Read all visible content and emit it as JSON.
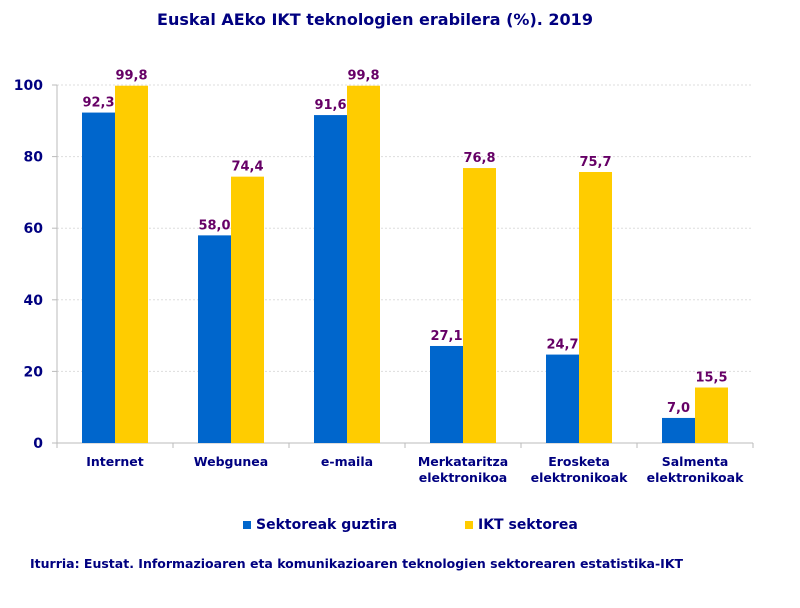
{
  "chart_data": {
    "type": "bar",
    "title": "Euskal AEko IKT teknologien erabilera (%). 2019",
    "categories": [
      [
        "Internet"
      ],
      [
        "Webgunea"
      ],
      [
        "e-maila"
      ],
      [
        "Merkataritza",
        "elektronikoa"
      ],
      [
        "Erosketa",
        "elektronikoak"
      ],
      [
        "Salmenta",
        "elektronikoak"
      ]
    ],
    "series": [
      {
        "name": "Sektoreak guztira",
        "color": "#0066CC",
        "values": [
          92.3,
          58.0,
          91.6,
          27.1,
          24.7,
          7.0
        ],
        "labels": [
          "92,3",
          "58,0",
          "91,6",
          "27,1",
          "24,7",
          "7,0"
        ]
      },
      {
        "name": "IKT sektorea",
        "color": "#FFCC00",
        "values": [
          99.8,
          74.4,
          99.8,
          76.8,
          75.7,
          15.5
        ],
        "labels": [
          "99,8",
          "74,4",
          "99,8",
          "76,8",
          "75,7",
          "15,5"
        ]
      }
    ],
    "ylim": [
      0,
      100
    ],
    "yticks": [
      0,
      20,
      40,
      60,
      80,
      100
    ],
    "grid": true,
    "legend": "bottom",
    "label_color": "#660066",
    "axis_text_color": "#000080",
    "source": "Iturria: Eustat. Informazioaren eta komunikazioaren teknologien sektorearen estatistika-IKT"
  }
}
